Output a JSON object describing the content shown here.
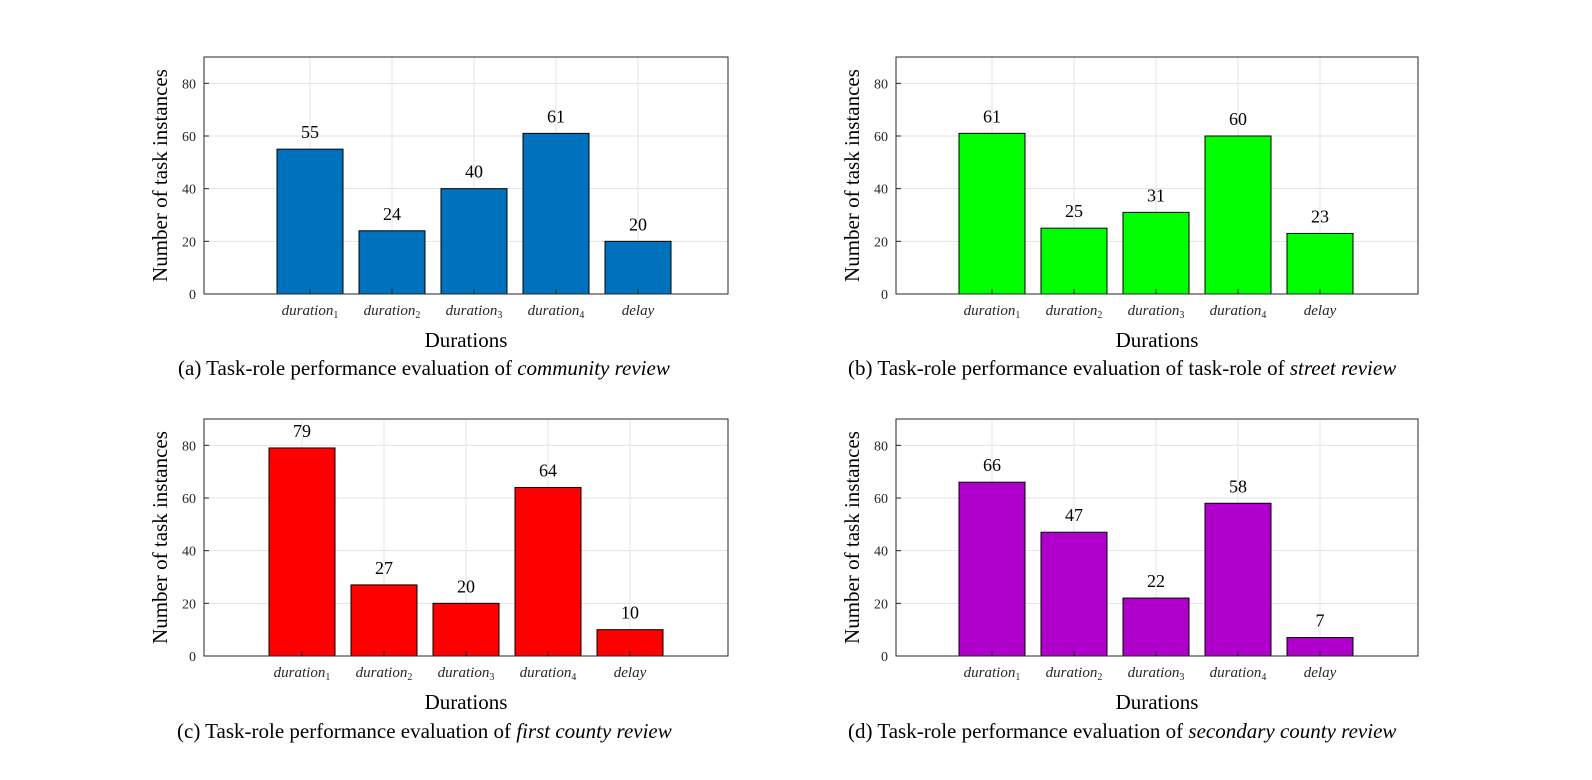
{
  "y_axis_label": "Number of task instances",
  "x_axis_label": "Durations",
  "charts": [
    {
      "caption_prefix": "(a) Task-role performance evaluation of ",
      "caption_emph": "community review",
      "bar_color": "#0072BD"
    },
    {
      "caption_prefix": "(b) Task-role performance evaluation of task-role of ",
      "caption_emph": "street review",
      "bar_color": "#00FF00"
    },
    {
      "caption_prefix": "(c) Task-role performance evaluation of ",
      "caption_emph": "first county review",
      "bar_color": "#FF0000"
    },
    {
      "caption_prefix": "(d) Task-role performance evaluation of ",
      "caption_emph": "secondary county review",
      "bar_color": "#B000CC"
    }
  ],
  "chart_data": [
    {
      "type": "bar",
      "categories": [
        "duration1",
        "duration2",
        "duration3",
        "duration4",
        "delay"
      ],
      "category_labels": [
        {
          "base": "duration",
          "sub": "1"
        },
        {
          "base": "duration",
          "sub": "2"
        },
        {
          "base": "duration",
          "sub": "3"
        },
        {
          "base": "duration",
          "sub": "4"
        },
        {
          "base": "delay",
          "sub": ""
        }
      ],
      "values": [
        55,
        24,
        40,
        61,
        20
      ],
      "xlabel": "Durations",
      "ylabel": "Number of task instances",
      "ylim": [
        0,
        90
      ],
      "yticks": [
        0,
        20,
        40,
        60,
        80
      ],
      "grid": true,
      "data_labels": true
    },
    {
      "type": "bar",
      "categories": [
        "duration1",
        "duration2",
        "duration3",
        "duration4",
        "delay"
      ],
      "category_labels": [
        {
          "base": "duration",
          "sub": "1"
        },
        {
          "base": "duration",
          "sub": "2"
        },
        {
          "base": "duration",
          "sub": "3"
        },
        {
          "base": "duration",
          "sub": "4"
        },
        {
          "base": "delay",
          "sub": ""
        }
      ],
      "values": [
        61,
        25,
        31,
        60,
        23
      ],
      "xlabel": "Durations",
      "ylabel": "Number of task instances",
      "ylim": [
        0,
        90
      ],
      "yticks": [
        0,
        20,
        40,
        60,
        80
      ],
      "grid": true,
      "data_labels": true
    },
    {
      "type": "bar",
      "categories": [
        "duration1",
        "duration2",
        "duration3",
        "duration4",
        "delay"
      ],
      "category_labels": [
        {
          "base": "duration",
          "sub": "1"
        },
        {
          "base": "duration",
          "sub": "2"
        },
        {
          "base": "duration",
          "sub": "3"
        },
        {
          "base": "duration",
          "sub": "4"
        },
        {
          "base": "delay",
          "sub": ""
        }
      ],
      "values": [
        79,
        27,
        20,
        64,
        10
      ],
      "xlabel": "Durations",
      "ylabel": "Number of task instances",
      "ylim": [
        0,
        90
      ],
      "yticks": [
        0,
        20,
        40,
        60,
        80
      ],
      "grid": true,
      "data_labels": true
    },
    {
      "type": "bar",
      "categories": [
        "duration1",
        "duration2",
        "duration3",
        "duration4",
        "delay"
      ],
      "category_labels": [
        {
          "base": "duration",
          "sub": "1"
        },
        {
          "base": "duration",
          "sub": "2"
        },
        {
          "base": "duration",
          "sub": "3"
        },
        {
          "base": "duration",
          "sub": "4"
        },
        {
          "base": "delay",
          "sub": ""
        }
      ],
      "values": [
        66,
        47,
        22,
        58,
        7
      ],
      "xlabel": "Durations",
      "ylabel": "Number of task instances",
      "ylim": [
        0,
        90
      ],
      "yticks": [
        0,
        20,
        40,
        60,
        80
      ],
      "grid": true,
      "data_labels": true
    }
  ]
}
